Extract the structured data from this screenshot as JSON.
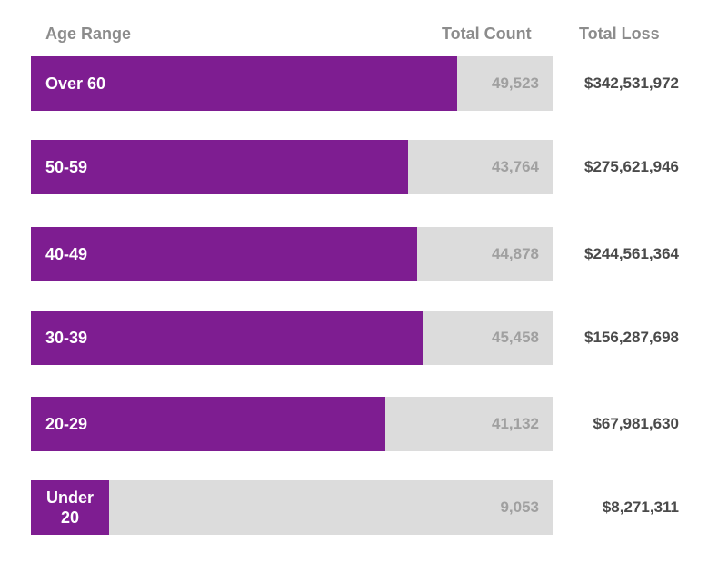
{
  "chart_data": {
    "type": "bar",
    "orientation": "horizontal",
    "headers": {
      "category": "Age Range",
      "count": "Total Count",
      "loss": "Total Loss"
    },
    "categories": [
      "Over 60",
      "50-59",
      "40-49",
      "30-39",
      "20-29",
      "Under 20"
    ],
    "count_labels": [
      "49,523",
      "43,764",
      "44,878",
      "45,458",
      "41,132",
      "9,053"
    ],
    "loss_labels": [
      "$342,531,972",
      "$275,621,946",
      "$244,561,364",
      "$156,287,698",
      "$67,981,630",
      "$8,271,311"
    ],
    "series": [
      {
        "values": [
          49523,
          43764,
          44878,
          45458,
          41132,
          9053
        ]
      }
    ],
    "xlim": [
      0,
      60700
    ],
    "colors": {
      "bar": "#7e1d91",
      "track": "#dcdcdc"
    }
  }
}
